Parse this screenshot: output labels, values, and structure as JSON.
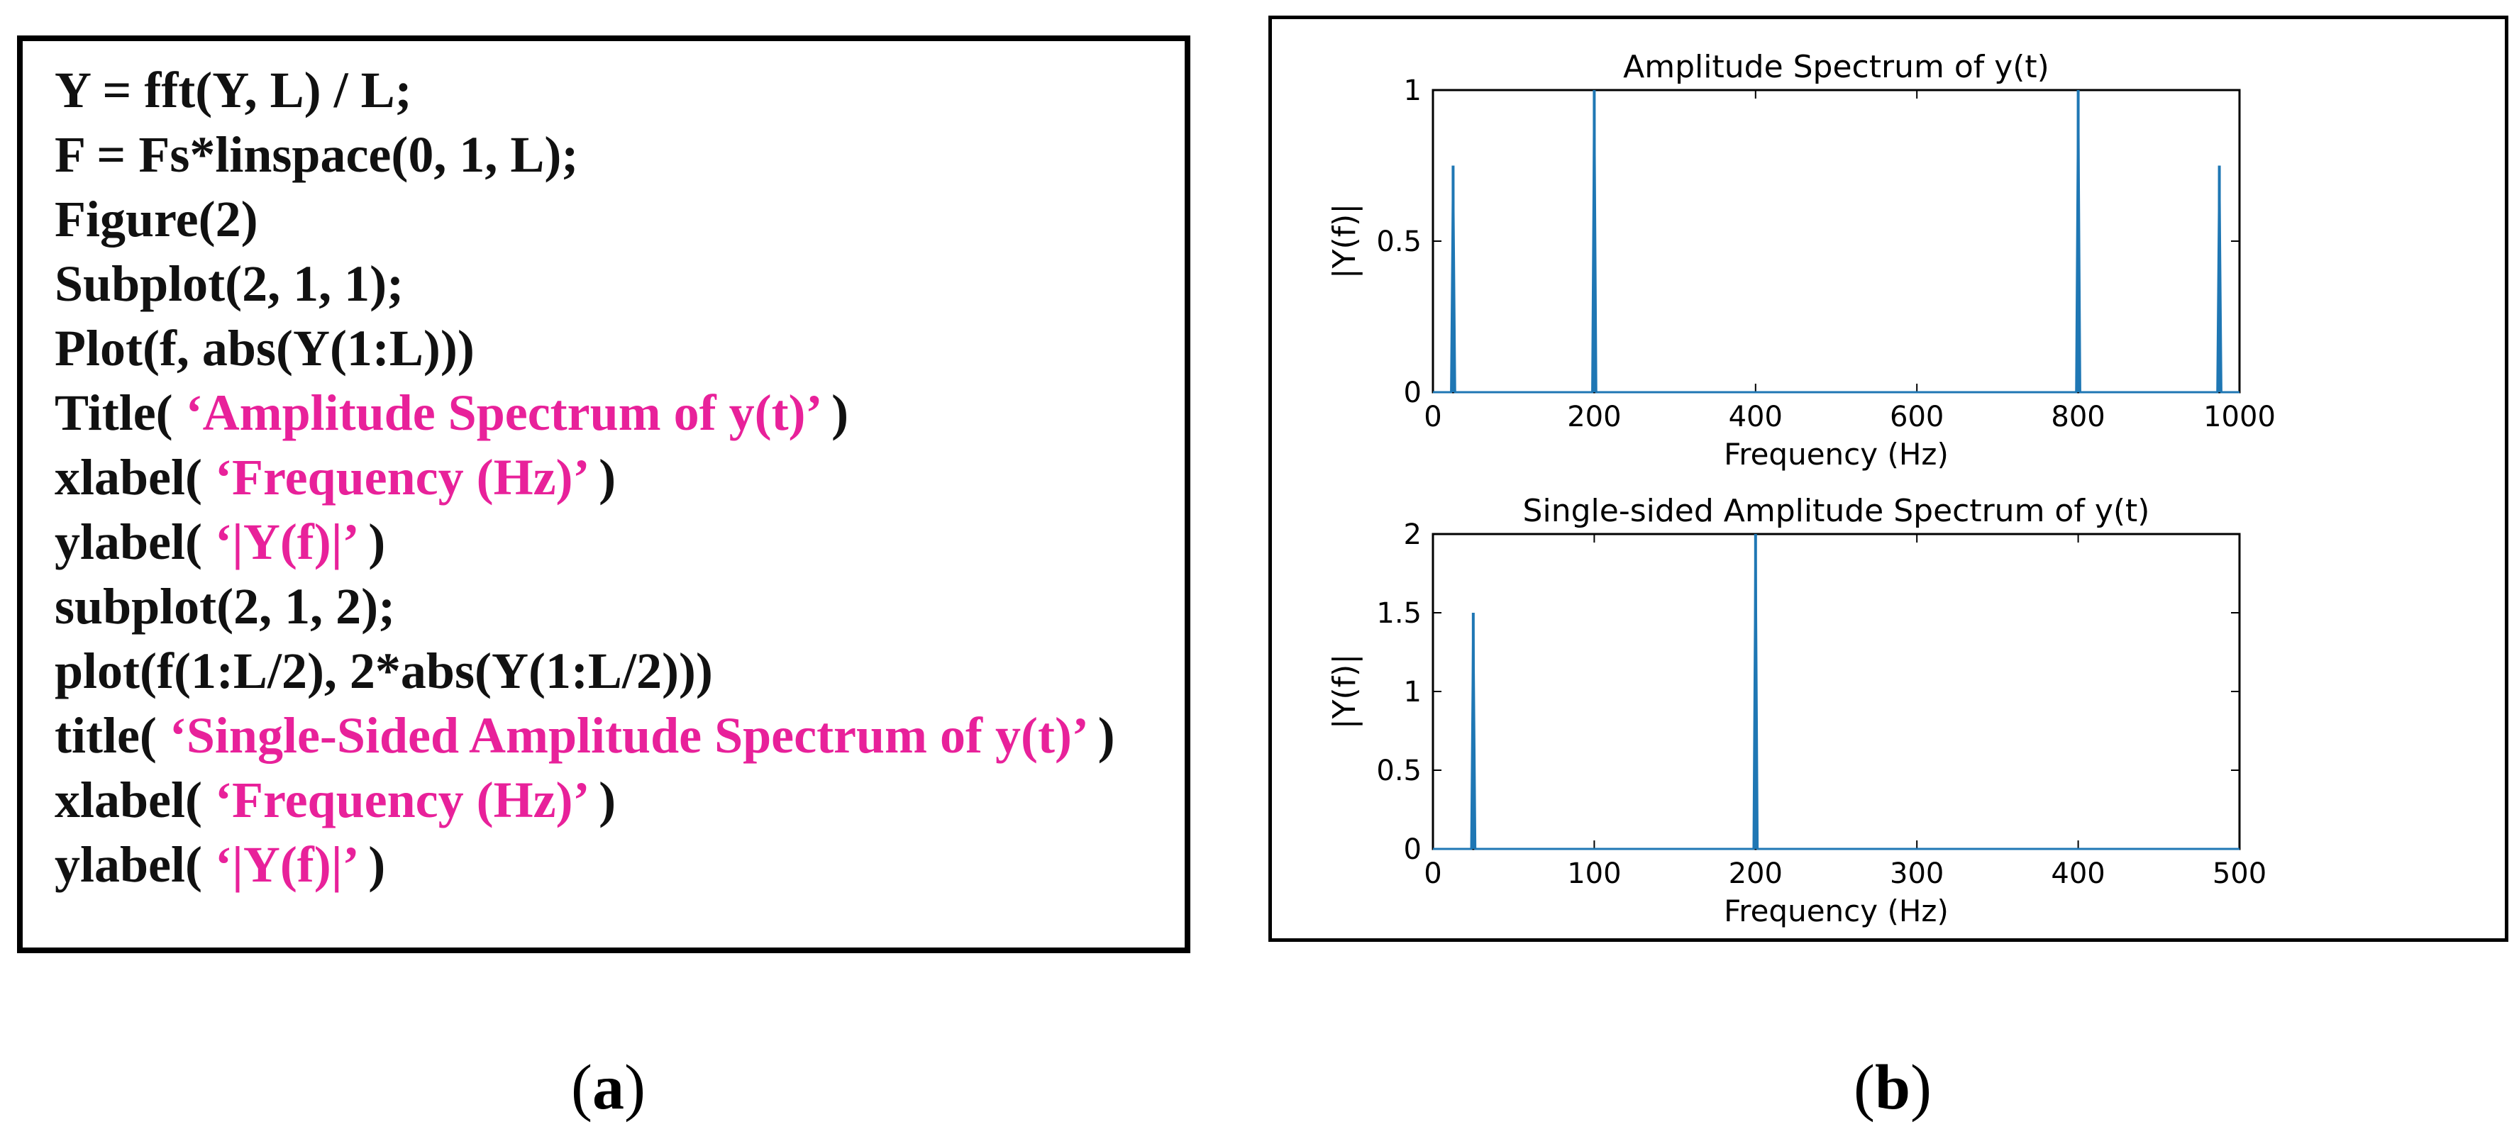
{
  "code": {
    "lines": [
      {
        "parts": [
          "Y = fft(Y, L) / L;"
        ]
      },
      {
        "parts": [
          "F = Fs*linspace(0, 1, L);"
        ]
      },
      {
        "parts": [
          "Figure(2)"
        ]
      },
      {
        "parts": [
          "Subplot(2, 1, 1);"
        ]
      },
      {
        "parts": [
          "Plot(f, abs(Y(1:L)))"
        ]
      },
      {
        "parts": [
          "Title( ",
          "‘Amplitude Spectrum of y(t)’",
          " )"
        ]
      },
      {
        "parts": [
          "xlabel( ",
          "‘Frequency (Hz)’",
          " )"
        ]
      },
      {
        "parts": [
          "ylabel( ",
          "‘|Y(f)|’",
          " )"
        ]
      },
      {
        "parts": [
          "subplot(2, 1, 2);"
        ]
      },
      {
        "parts": [
          "plot(f(1:L/2), 2*abs(Y(1:L/2)))"
        ]
      },
      {
        "parts": [
          "title( ",
          "‘Single-Sided Amplitude Spectrum of y(t)’",
          " )"
        ]
      },
      {
        "parts": [
          "xlabel( ",
          "‘Frequency (Hz)’",
          " )"
        ]
      },
      {
        "parts": [
          "ylabel( ",
          "‘|Y(f)|’",
          " )"
        ]
      }
    ],
    "string_color": "#e8219a",
    "text_color": "#111111"
  },
  "captions": {
    "a_open": "(",
    "a_letter": "a",
    "a_close": ")",
    "b_open": "(",
    "b_letter": "b",
    "b_close": ")"
  },
  "line_color": "#1f77b4",
  "chart_data": [
    {
      "type": "line",
      "title": "Amplitude Spectrum of y(t)",
      "xlabel": "Frequency (Hz)",
      "ylabel": "|Y(f)|",
      "xlim": [
        0,
        1000
      ],
      "ylim": [
        0,
        1
      ],
      "xticks": [
        0,
        200,
        400,
        600,
        800,
        1000
      ],
      "yticks": [
        0,
        0.5,
        1
      ],
      "ytick_labels": [
        "0",
        "0.5",
        "1"
      ],
      "grid": false,
      "peaks": [
        {
          "x": 25,
          "y": 0.75
        },
        {
          "x": 200,
          "y": 1.0
        },
        {
          "x": 800,
          "y": 1.0
        },
        {
          "x": 975,
          "y": 0.75
        }
      ]
    },
    {
      "type": "line",
      "title": "Single-sided Amplitude Spectrum of y(t)",
      "xlabel": "Frequency (Hz)",
      "ylabel": "|Y(f)|",
      "xlim": [
        0,
        500
      ],
      "ylim": [
        0,
        2
      ],
      "xticks": [
        0,
        100,
        200,
        300,
        400,
        500
      ],
      "yticks": [
        0,
        0.5,
        1,
        1.5,
        2
      ],
      "ytick_labels": [
        "0",
        "0.5",
        "1",
        "1.5",
        "2"
      ],
      "grid": false,
      "peaks": [
        {
          "x": 25,
          "y": 1.5
        },
        {
          "x": 200,
          "y": 2.0
        }
      ]
    }
  ]
}
